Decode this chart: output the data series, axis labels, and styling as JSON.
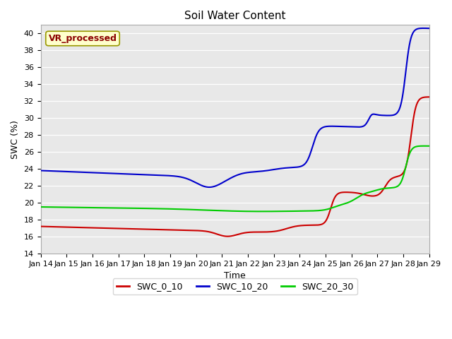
{
  "title": "Soil Water Content",
  "xlabel": "Time",
  "ylabel": "SWC (%)",
  "ylim": [
    14,
    41
  ],
  "yticks": [
    14,
    16,
    18,
    20,
    22,
    24,
    26,
    28,
    30,
    32,
    34,
    36,
    38,
    40
  ],
  "xlim": [
    0,
    15
  ],
  "background_color": "#e8e8e8",
  "annotation_text": "VR_processed",
  "annotation_color": "#8b0000",
  "annotation_bg": "#ffffcc",
  "annotation_edge": "#999900",
  "line_colors": {
    "SWC_0_10": "#cc0000",
    "SWC_10_20": "#0000cc",
    "SWC_20_30": "#00cc00"
  },
  "x_tick_labels": [
    "Jan 14",
    "Jan 15",
    "Jan 16",
    "Jan 17",
    "Jan 18",
    "Jan 19",
    "Jan 20",
    "Jan 21",
    "Jan 22",
    "Jan 23",
    "Jan 24",
    "Jan 25",
    "Jan 26",
    "Jan 27",
    "Jan 28",
    "Jan 29"
  ],
  "tick_fontsize": 8,
  "axis_label_fontsize": 9,
  "title_fontsize": 11,
  "legend_fontsize": 9,
  "line_width": 1.5,
  "noise_scale": 0.0,
  "fig_width": 6.4,
  "fig_height": 4.8,
  "dpi": 100
}
